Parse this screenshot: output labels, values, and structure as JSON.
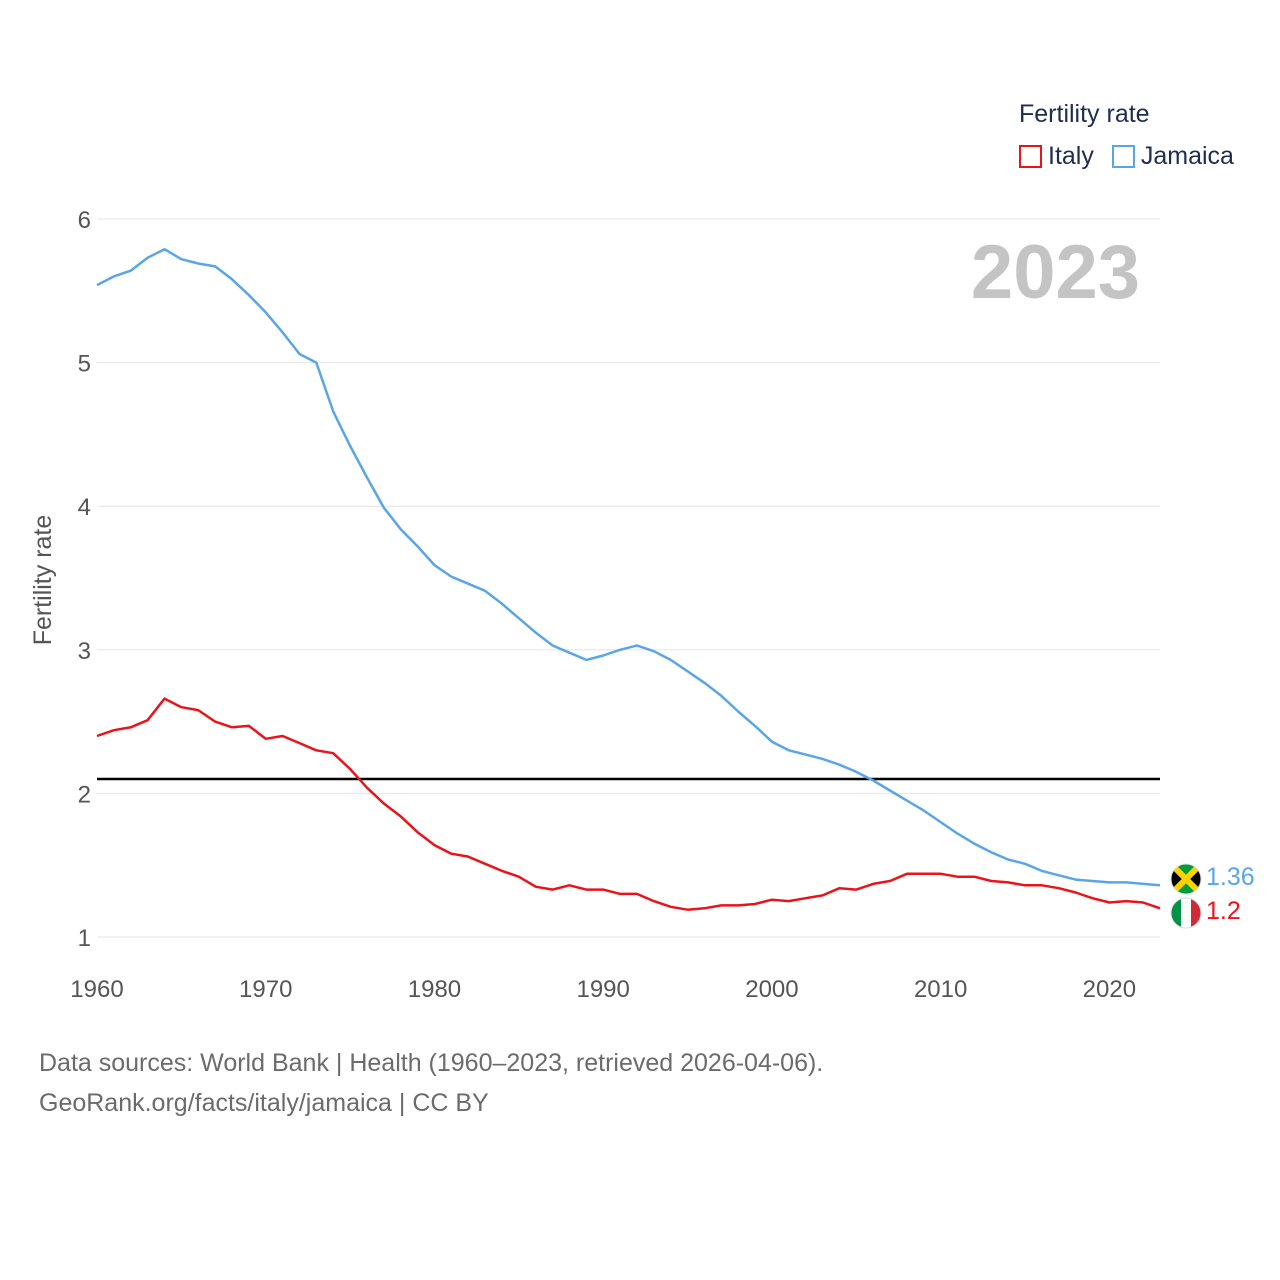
{
  "legend": {
    "title": "Fertility rate",
    "items": [
      {
        "label": "Italy",
        "color": "#e8141a"
      },
      {
        "label": "Jamaica",
        "color": "#5aa5e6"
      }
    ]
  },
  "year_label": "2023",
  "footer": {
    "line1": "Data sources: World Bank | Health (1960–2023, retrieved 2026-04-06).",
    "line2": "GeoRank.org/facts/italy/jamaica | CC BY"
  },
  "chart_data": {
    "type": "line",
    "title": "Fertility rate",
    "xlabel": "",
    "ylabel": "Fertility rate",
    "xlim": [
      1960,
      2023
    ],
    "ylim": [
      1,
      6
    ],
    "x_ticks": [
      1960,
      1970,
      1980,
      1990,
      2000,
      2010,
      2020
    ],
    "y_ticks": [
      1,
      2,
      3,
      4,
      5,
      6
    ],
    "grid": true,
    "legend_position": "top-right",
    "reference_line": {
      "y": 2.1,
      "color": "#000000"
    },
    "x": [
      1960,
      1961,
      1962,
      1963,
      1964,
      1965,
      1966,
      1967,
      1968,
      1969,
      1970,
      1971,
      1972,
      1973,
      1974,
      1975,
      1976,
      1977,
      1978,
      1979,
      1980,
      1981,
      1982,
      1983,
      1984,
      1985,
      1986,
      1987,
      1988,
      1989,
      1990,
      1991,
      1992,
      1993,
      1994,
      1995,
      1996,
      1997,
      1998,
      1999,
      2000,
      2001,
      2002,
      2003,
      2004,
      2005,
      2006,
      2007,
      2008,
      2009,
      2010,
      2011,
      2012,
      2013,
      2014,
      2015,
      2016,
      2017,
      2018,
      2019,
      2020,
      2021,
      2022,
      2023
    ],
    "series": [
      {
        "name": "Italy",
        "color": "#e8141a",
        "end_label": "1.2",
        "values": [
          2.4,
          2.44,
          2.46,
          2.51,
          2.66,
          2.6,
          2.58,
          2.5,
          2.46,
          2.47,
          2.38,
          2.4,
          2.35,
          2.3,
          2.28,
          2.17,
          2.04,
          1.93,
          1.84,
          1.73,
          1.64,
          1.58,
          1.56,
          1.51,
          1.46,
          1.42,
          1.35,
          1.33,
          1.36,
          1.33,
          1.33,
          1.3,
          1.3,
          1.25,
          1.21,
          1.19,
          1.2,
          1.22,
          1.22,
          1.23,
          1.26,
          1.25,
          1.27,
          1.29,
          1.34,
          1.33,
          1.37,
          1.39,
          1.44,
          1.44,
          1.44,
          1.42,
          1.42,
          1.39,
          1.38,
          1.36,
          1.36,
          1.34,
          1.31,
          1.27,
          1.24,
          1.25,
          1.24,
          1.2
        ]
      },
      {
        "name": "Jamaica",
        "color": "#5aa5e6",
        "end_label": "1.36",
        "values": [
          5.54,
          5.6,
          5.64,
          5.73,
          5.79,
          5.72,
          5.69,
          5.67,
          5.58,
          5.47,
          5.35,
          5.21,
          5.06,
          5.0,
          4.66,
          4.42,
          4.2,
          3.99,
          3.84,
          3.72,
          3.59,
          3.51,
          3.46,
          3.41,
          3.32,
          3.22,
          3.12,
          3.03,
          2.98,
          2.93,
          2.96,
          3.0,
          3.03,
          2.99,
          2.93,
          2.85,
          2.77,
          2.68,
          2.57,
          2.47,
          2.36,
          2.3,
          2.27,
          2.24,
          2.2,
          2.15,
          2.09,
          2.02,
          1.95,
          1.88,
          1.8,
          1.72,
          1.65,
          1.59,
          1.54,
          1.51,
          1.46,
          1.43,
          1.4,
          1.39,
          1.38,
          1.38,
          1.37,
          1.36
        ]
      }
    ]
  }
}
